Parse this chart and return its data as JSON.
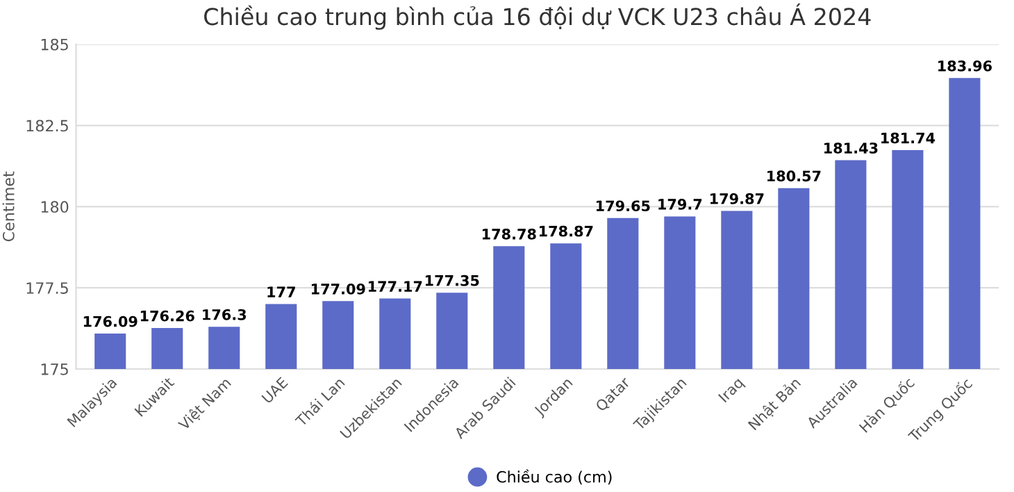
{
  "chart_data": {
    "type": "bar",
    "title": "Chiều cao trung bình của 16 đội dự VCK U23 châu Á 2024",
    "ylabel": "Centimet",
    "categories": [
      "Malaysia",
      "Kuwait",
      "Việt Nam",
      "UAE",
      "Thái Lan",
      "Uzbekistan",
      "Indonesia",
      "Arab Saudi",
      "Jordan",
      "Qatar",
      "Tajikistan",
      "Iraq",
      "Nhật Bản",
      "Australia",
      "Hàn Quốc",
      "Trung Quốc"
    ],
    "series": [
      {
        "name": "Chiều cao (cm)",
        "color": "#5c6bc8",
        "values": [
          176.09,
          176.26,
          176.3,
          177,
          177.09,
          177.17,
          177.35,
          178.78,
          178.87,
          179.65,
          179.7,
          179.87,
          180.57,
          181.43,
          181.74,
          183.96
        ]
      }
    ],
    "ylim": [
      175,
      185
    ],
    "yticks": [
      175,
      177.5,
      180,
      182.5,
      185
    ],
    "grid": "y",
    "legend": "bottom",
    "marker": "circle",
    "data_labels": true
  }
}
